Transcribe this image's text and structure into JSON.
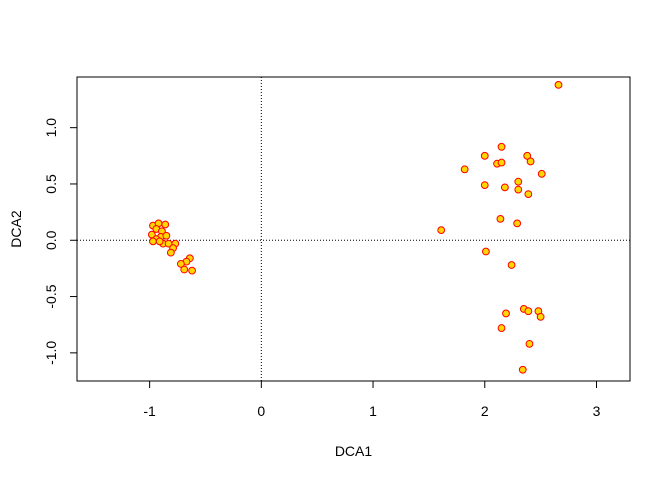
{
  "chart_data": {
    "type": "scatter",
    "xlabel": "DCA1",
    "ylabel": "DCA2",
    "xlim": [
      -1.65,
      3.3
    ],
    "ylim": [
      -1.25,
      1.45
    ],
    "x_ticks": [
      -1,
      0,
      1,
      2,
      3
    ],
    "y_ticks": [
      -1.0,
      -0.5,
      0.0,
      0.5,
      1.0
    ],
    "x_tick_labels": [
      "-1",
      "0",
      "1",
      "2",
      "3"
    ],
    "y_tick_labels": [
      "-1.0",
      "-0.5",
      "0.0",
      "0.5",
      "1.0"
    ],
    "reference_lines": {
      "x": 0,
      "y": 0,
      "style": "dotted"
    },
    "grid": false,
    "point_fill": "#FFD700",
    "point_stroke": "#FF0000",
    "points": [
      {
        "x": 2.66,
        "y": 1.38
      },
      {
        "x": 2.15,
        "y": 0.83
      },
      {
        "x": 2.0,
        "y": 0.75
      },
      {
        "x": 2.38,
        "y": 0.75
      },
      {
        "x": 2.41,
        "y": 0.7
      },
      {
        "x": 2.11,
        "y": 0.68
      },
      {
        "x": 2.15,
        "y": 0.69
      },
      {
        "x": 1.82,
        "y": 0.63
      },
      {
        "x": 2.51,
        "y": 0.59
      },
      {
        "x": 2.3,
        "y": 0.52
      },
      {
        "x": 2.0,
        "y": 0.49
      },
      {
        "x": 2.18,
        "y": 0.47
      },
      {
        "x": 2.3,
        "y": 0.45
      },
      {
        "x": 2.39,
        "y": 0.41
      },
      {
        "x": 2.14,
        "y": 0.19
      },
      {
        "x": 2.29,
        "y": 0.15
      },
      {
        "x": 1.61,
        "y": 0.09
      },
      {
        "x": 2.01,
        "y": -0.1
      },
      {
        "x": 2.24,
        "y": -0.22
      },
      {
        "x": 2.35,
        "y": -0.61
      },
      {
        "x": 2.39,
        "y": -0.63
      },
      {
        "x": 2.48,
        "y": -0.63
      },
      {
        "x": 2.5,
        "y": -0.68
      },
      {
        "x": 2.19,
        "y": -0.65
      },
      {
        "x": 2.15,
        "y": -0.78
      },
      {
        "x": 2.4,
        "y": -0.92
      },
      {
        "x": 2.34,
        "y": -1.15
      },
      {
        "x": -0.97,
        "y": 0.13
      },
      {
        "x": -0.92,
        "y": 0.15
      },
      {
        "x": -0.86,
        "y": 0.14
      },
      {
        "x": -0.94,
        "y": 0.1
      },
      {
        "x": -0.89,
        "y": 0.08
      },
      {
        "x": -0.98,
        "y": 0.05
      },
      {
        "x": -0.9,
        "y": 0.03
      },
      {
        "x": -0.85,
        "y": 0.04
      },
      {
        "x": -0.94,
        "y": 0.01
      },
      {
        "x": -0.97,
        "y": -0.01
      },
      {
        "x": -0.88,
        "y": -0.03
      },
      {
        "x": -0.91,
        "y": -0.01
      },
      {
        "x": -0.83,
        "y": -0.03
      },
      {
        "x": -0.77,
        "y": -0.03
      },
      {
        "x": -0.79,
        "y": -0.07
      },
      {
        "x": -0.81,
        "y": -0.11
      },
      {
        "x": -0.64,
        "y": -0.16
      },
      {
        "x": -0.67,
        "y": -0.19
      },
      {
        "x": -0.72,
        "y": -0.21
      },
      {
        "x": -0.69,
        "y": -0.26
      },
      {
        "x": -0.62,
        "y": -0.27
      }
    ]
  }
}
